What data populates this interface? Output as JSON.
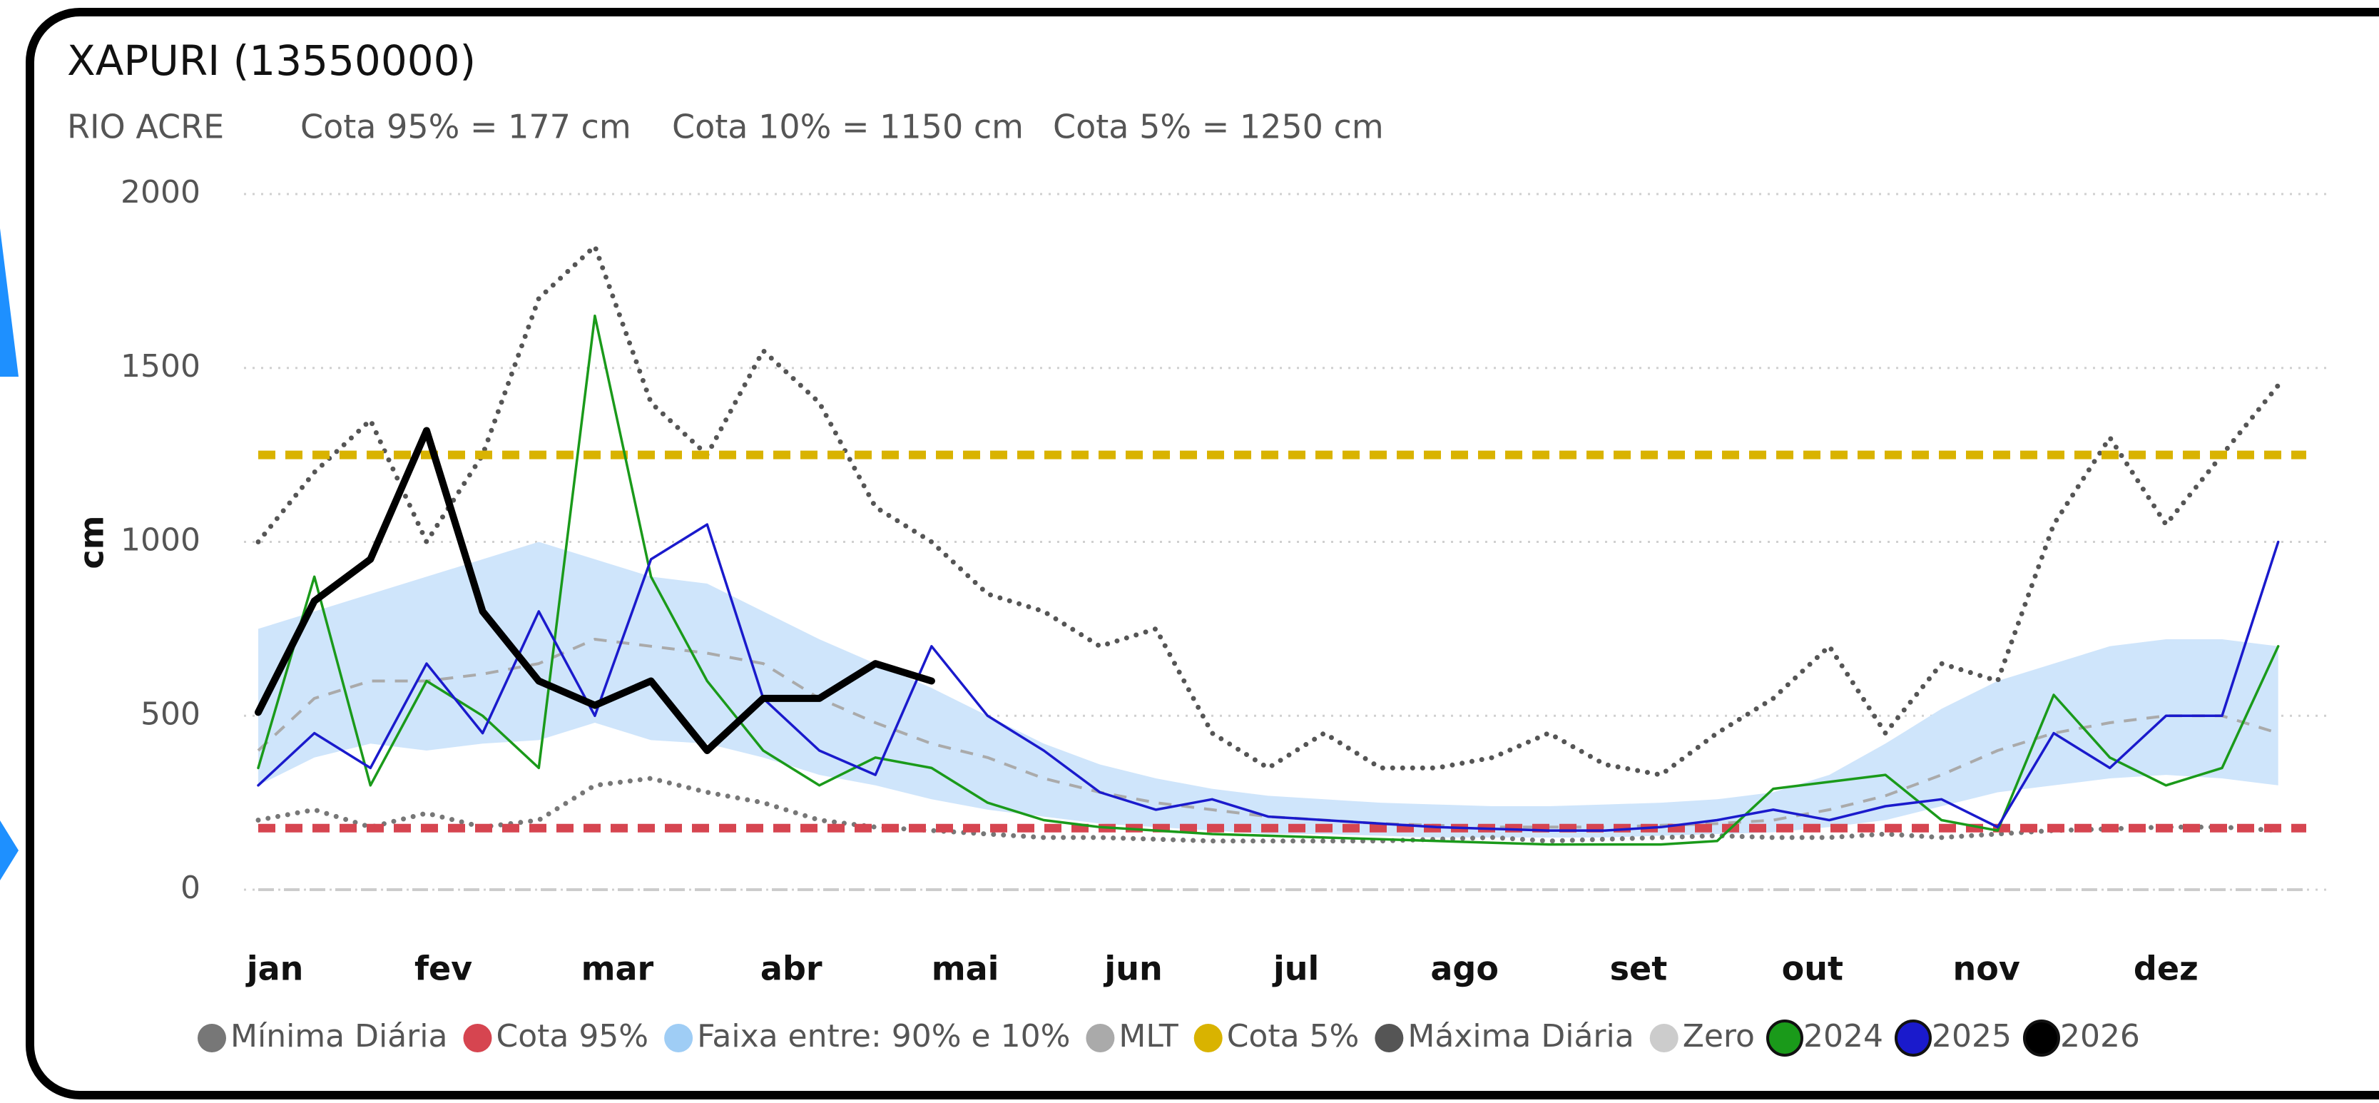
{
  "chart_data": {
    "type": "line",
    "title": "XAPURI (13550000)",
    "subtitle": [
      "RIO ACRE",
      "Cota 95% = 177 cm",
      "Cota 10% = 1150 cm",
      "Cota 5% = 1250 cm"
    ],
    "y_label": "cm",
    "x": [
      1,
      11,
      21,
      31,
      41,
      51,
      61,
      71,
      81,
      91,
      101,
      111,
      121,
      131,
      141,
      151,
      161,
      171,
      181,
      191,
      201,
      211,
      221,
      231,
      241,
      251,
      261,
      271,
      281,
      291,
      301,
      311,
      321,
      331,
      341,
      351,
      361
    ],
    "xlim": [
      1,
      366
    ],
    "xticks": [
      {
        "value": 4,
        "label": "jan"
      },
      {
        "value": 34,
        "label": "fev"
      },
      {
        "value": 65,
        "label": "mar"
      },
      {
        "value": 96,
        "label": "abr"
      },
      {
        "value": 127,
        "label": "mai"
      },
      {
        "value": 157,
        "label": "jun"
      },
      {
        "value": 186,
        "label": "jul"
      },
      {
        "value": 216,
        "label": "ago"
      },
      {
        "value": 247,
        "label": "set"
      },
      {
        "value": 278,
        "label": "out"
      },
      {
        "value": 309,
        "label": "nov"
      },
      {
        "value": 341,
        "label": "dez"
      }
    ],
    "ylim": [
      0,
      2000
    ],
    "yticks": [
      0,
      500,
      1000,
      1500,
      2000
    ],
    "grid": true,
    "series": [
      {
        "name": "Mínima Diária",
        "style": "dotted",
        "color": "#777777",
        "values": [
          200,
          230,
          180,
          220,
          180,
          200,
          300,
          320,
          280,
          250,
          200,
          180,
          170,
          160,
          150,
          150,
          145,
          140,
          140,
          140,
          140,
          145,
          150,
          140,
          145,
          150,
          155,
          150,
          150,
          160,
          150,
          160,
          170,
          175,
          180,
          180,
          170
        ]
      },
      {
        "name": "Cota 95%",
        "style": "level",
        "color": "#d64550",
        "value": 177
      },
      {
        "name": "Faixa entre: 90% e 10%",
        "style": "band",
        "color": "#cfe5fb",
        "values_low": [
          300,
          380,
          420,
          400,
          420,
          430,
          480,
          430,
          420,
          380,
          330,
          300,
          260,
          230,
          210,
          190,
          180,
          170,
          160,
          160,
          155,
          150,
          150,
          150,
          150,
          155,
          160,
          165,
          180,
          200,
          240,
          280,
          300,
          320,
          330,
          320,
          300
        ],
        "values_high": [
          750,
          800,
          850,
          900,
          950,
          1000,
          950,
          900,
          880,
          800,
          720,
          650,
          580,
          500,
          420,
          360,
          320,
          290,
          270,
          260,
          250,
          245,
          240,
          240,
          245,
          250,
          260,
          280,
          330,
          420,
          520,
          600,
          650,
          700,
          720,
          720,
          700
        ]
      },
      {
        "name": "MLT",
        "style": "dashed",
        "color": "#aaaaaa",
        "values": [
          400,
          550,
          600,
          600,
          620,
          650,
          720,
          700,
          680,
          650,
          550,
          480,
          420,
          380,
          320,
          280,
          250,
          230,
          210,
          200,
          190,
          185,
          180,
          180,
          180,
          185,
          190,
          200,
          230,
          270,
          330,
          400,
          450,
          480,
          500,
          500,
          450
        ]
      },
      {
        "name": "Cota 5%",
        "style": "level",
        "color": "#d9b300",
        "value": 1250
      },
      {
        "name": "Máxima Diária",
        "style": "dotted",
        "color": "#555555",
        "values": [
          1000,
          1200,
          1350,
          1000,
          1250,
          1700,
          1850,
          1400,
          1250,
          1550,
          1400,
          1100,
          1000,
          850,
          800,
          700,
          750,
          450,
          350,
          450,
          350,
          350,
          380,
          450,
          360,
          330,
          450,
          550,
          700,
          450,
          650,
          600,
          1050,
          1300,
          1050,
          1250,
          1450
        ]
      },
      {
        "name": "Zero",
        "style": "level-light",
        "color": "#cccccc",
        "value": 0
      },
      {
        "name": "2024",
        "style": "solid",
        "color": "#1a9a1a",
        "values": [
          350,
          900,
          300,
          600,
          500,
          350,
          1650,
          900,
          600,
          400,
          300,
          380,
          350,
          250,
          200,
          180,
          170,
          160,
          155,
          150,
          145,
          140,
          135,
          130,
          130,
          130,
          140,
          290,
          310,
          330,
          200,
          170,
          560,
          380,
          300,
          350,
          700
        ]
      },
      {
        "name": "2025",
        "style": "solid",
        "color": "#1a1acc",
        "values": [
          300,
          450,
          350,
          650,
          450,
          800,
          500,
          950,
          1050,
          550,
          400,
          330,
          700,
          500,
          400,
          280,
          230,
          260,
          210,
          200,
          190,
          180,
          175,
          170,
          170,
          180,
          200,
          230,
          200,
          240,
          260,
          180,
          450,
          350,
          500,
          500,
          1000
        ]
      },
      {
        "name": "2026",
        "style": "thick",
        "color": "#000000",
        "values": [
          510,
          830,
          950,
          1320,
          800,
          600,
          530,
          600,
          400,
          550,
          550,
          650,
          600,
          null,
          null,
          null,
          null,
          null,
          null,
          null,
          null,
          null,
          null,
          null,
          null,
          null,
          null,
          null,
          null,
          null,
          null,
          null,
          null,
          null,
          null,
          null,
          null
        ]
      }
    ]
  }
}
